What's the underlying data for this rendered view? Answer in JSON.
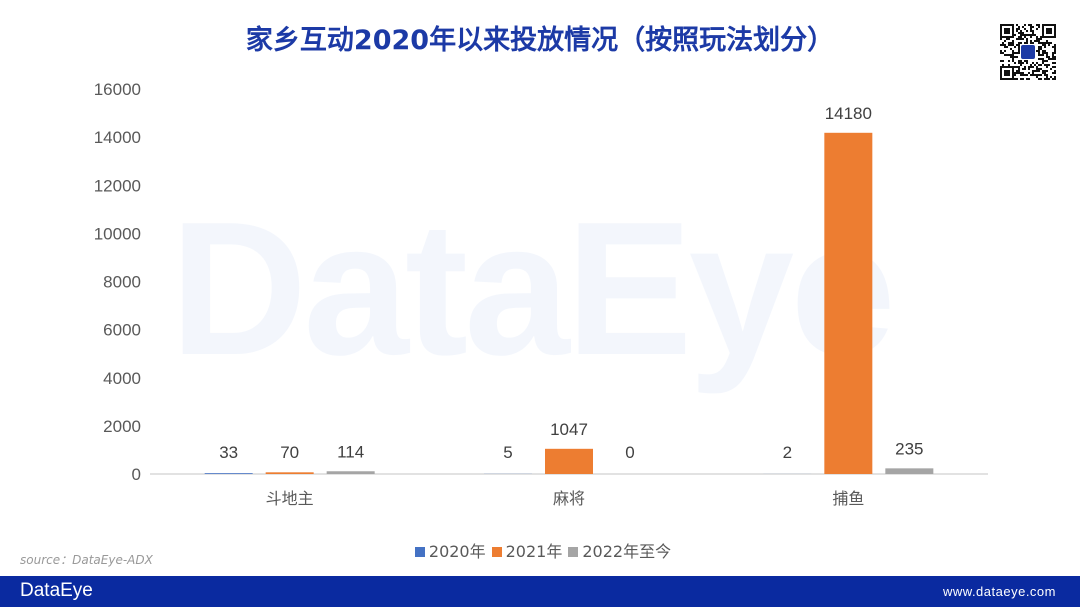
{
  "title": "家乡互动2020年以来投放情况（按照玩法划分）",
  "source": "source：DataEye-ADX",
  "footer": {
    "logo": "DataEye",
    "url": "www.dataeye.com"
  },
  "watermark": "DataEye",
  "chart_data": {
    "type": "bar",
    "title": "家乡互动2020年以来投放情况（按照玩法划分）",
    "categories": [
      "斗地主",
      "麻将",
      "捕鱼"
    ],
    "series": [
      {
        "name": "2020年",
        "values": [
          33,
          5,
          2
        ],
        "color": "#4472c4"
      },
      {
        "name": "2021年",
        "values": [
          70,
          1047,
          14180
        ],
        "color": "#ed7d31"
      },
      {
        "name": "2022年至今",
        "values": [
          114,
          0,
          235
        ],
        "color": "#a5a5a5"
      }
    ],
    "ylim": [
      0,
      16000
    ],
    "yticks": [
      0,
      2000,
      4000,
      6000,
      8000,
      10000,
      12000,
      14000,
      16000
    ],
    "grid": false,
    "legend": "bottom",
    "data_labels": true
  }
}
